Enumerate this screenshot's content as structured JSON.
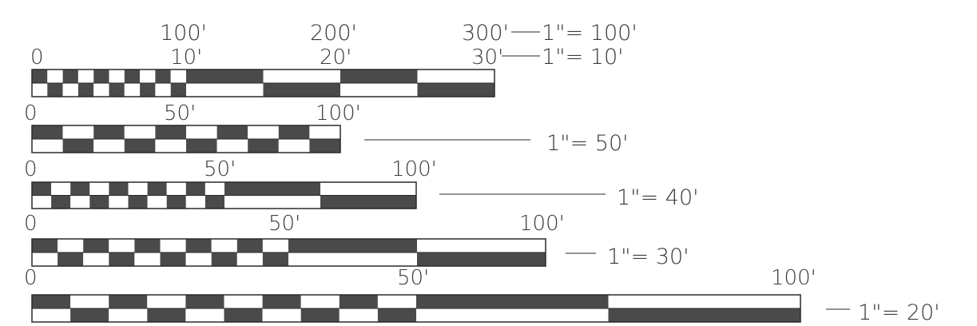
{
  "colors": {
    "dark": "#4a4a4a",
    "light": "#ffffff",
    "outline": "#2a2a2a",
    "text": "#3a3a3a"
  },
  "scale_bars": [
    {
      "id": "scale-100-10",
      "tick_labels_upper": [
        "100'",
        "200'",
        "300'"
      ],
      "tick_labels_lower": [
        "0",
        "10'",
        "20'",
        "30'"
      ],
      "notes": [
        "1\"= 100'",
        "1\"= 10'"
      ]
    },
    {
      "id": "scale-50",
      "tick_labels": [
        "0",
        "50'",
        "100'"
      ],
      "note": "1\"= 50'"
    },
    {
      "id": "scale-40",
      "tick_labels": [
        "0",
        "50'",
        "100'"
      ],
      "note": "1\"= 40'"
    },
    {
      "id": "scale-30",
      "tick_labels": [
        "0",
        "50'",
        "100'"
      ],
      "note": "1\"= 30'"
    },
    {
      "id": "scale-20",
      "tick_labels": [
        "0",
        "50'",
        "100'"
      ],
      "note": "1\"= 20'"
    }
  ]
}
